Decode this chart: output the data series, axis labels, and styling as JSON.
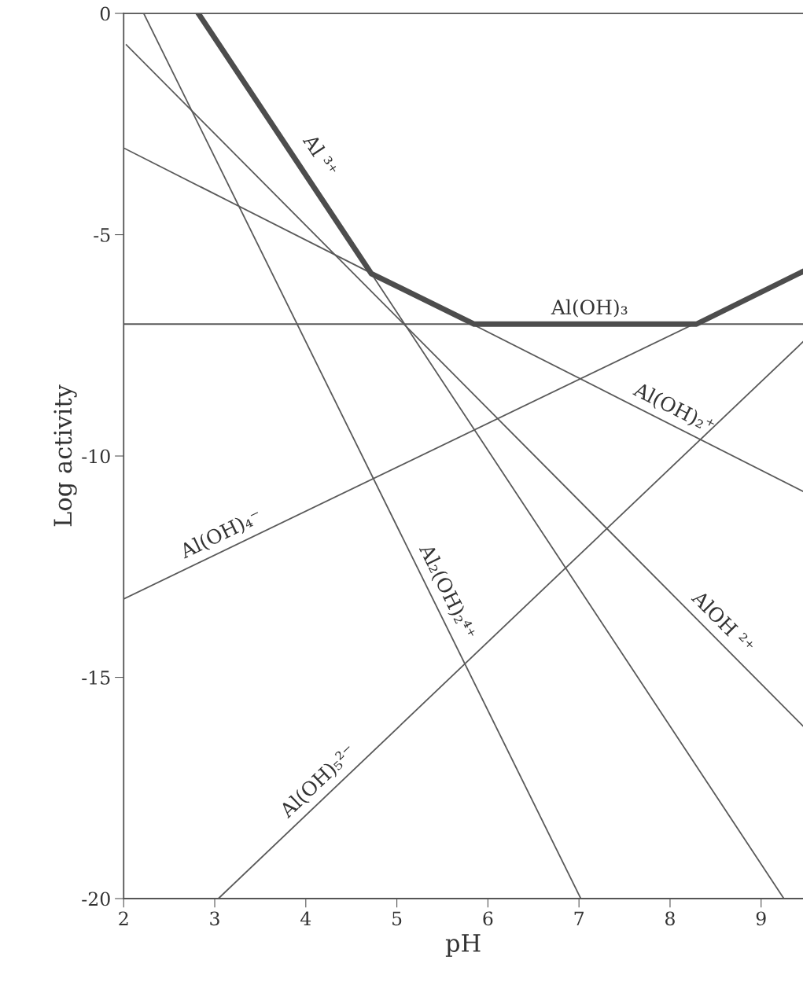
{
  "chart_data": {
    "type": "line",
    "xlabel": "pH",
    "ylabel": "Log activity",
    "xlim": [
      2,
      9.46
    ],
    "ylim": [
      -20,
      0
    ],
    "xticks": [
      2,
      3,
      4,
      5,
      6,
      7,
      8,
      9
    ],
    "yticks": [
      {
        "value": 0,
        "label": "0"
      },
      {
        "value": -5,
        "label": "-5"
      },
      {
        "value": -10,
        "label": "-10"
      },
      {
        "value": -15,
        "label": "-15"
      },
      {
        "value": -20,
        "label": "-20"
      }
    ],
    "grid": false,
    "marker": "none",
    "line_style": "solid",
    "series": [
      {
        "color": "#4d4d4d",
        "x": [
          2.82,
          4.72,
          5.85,
          8.29,
          9.46
        ],
        "values": [
          0,
          -5.88,
          -7.02,
          -7.02,
          -5.83
        ]
      },
      {
        "name": "Al ³⁺",
        "color": "#5a5a5a",
        "x": [
          2.82,
          4.72,
          9.25
        ],
        "values": [
          0,
          -5.88,
          -20
        ]
      },
      {
        "name": "Al(OH)₃",
        "color": "#5a5a5a",
        "x": [
          2,
          9.46
        ],
        "values": [
          -7.02,
          -7.02
        ]
      },
      {
        "name": "Al(OH)₂⁺",
        "color": "#5a5a5a",
        "x": [
          2,
          9.46
        ],
        "values": [
          -3.04,
          -10.8
        ]
      },
      {
        "name": "AlOH ²⁺",
        "color": "#5a5a5a",
        "x": [
          2.03,
          9.46
        ],
        "values": [
          -0.71,
          -16.1
        ]
      },
      {
        "name": "Al₂(OH)₂⁴⁺",
        "color": "#5a5a5a",
        "x": [
          2.22,
          7.02
        ],
        "values": [
          0,
          -20
        ]
      },
      {
        "name": "Al(OH)₄⁻",
        "color": "#5a5a5a",
        "x": [
          2,
          9.46
        ],
        "values": [
          -13.23,
          -5.83
        ]
      },
      {
        "name": "Al(OH)₅²⁻",
        "color": "#5a5a5a",
        "x": [
          3.04,
          9.46
        ],
        "values": [
          -20,
          -7.42
        ]
      }
    ]
  }
}
